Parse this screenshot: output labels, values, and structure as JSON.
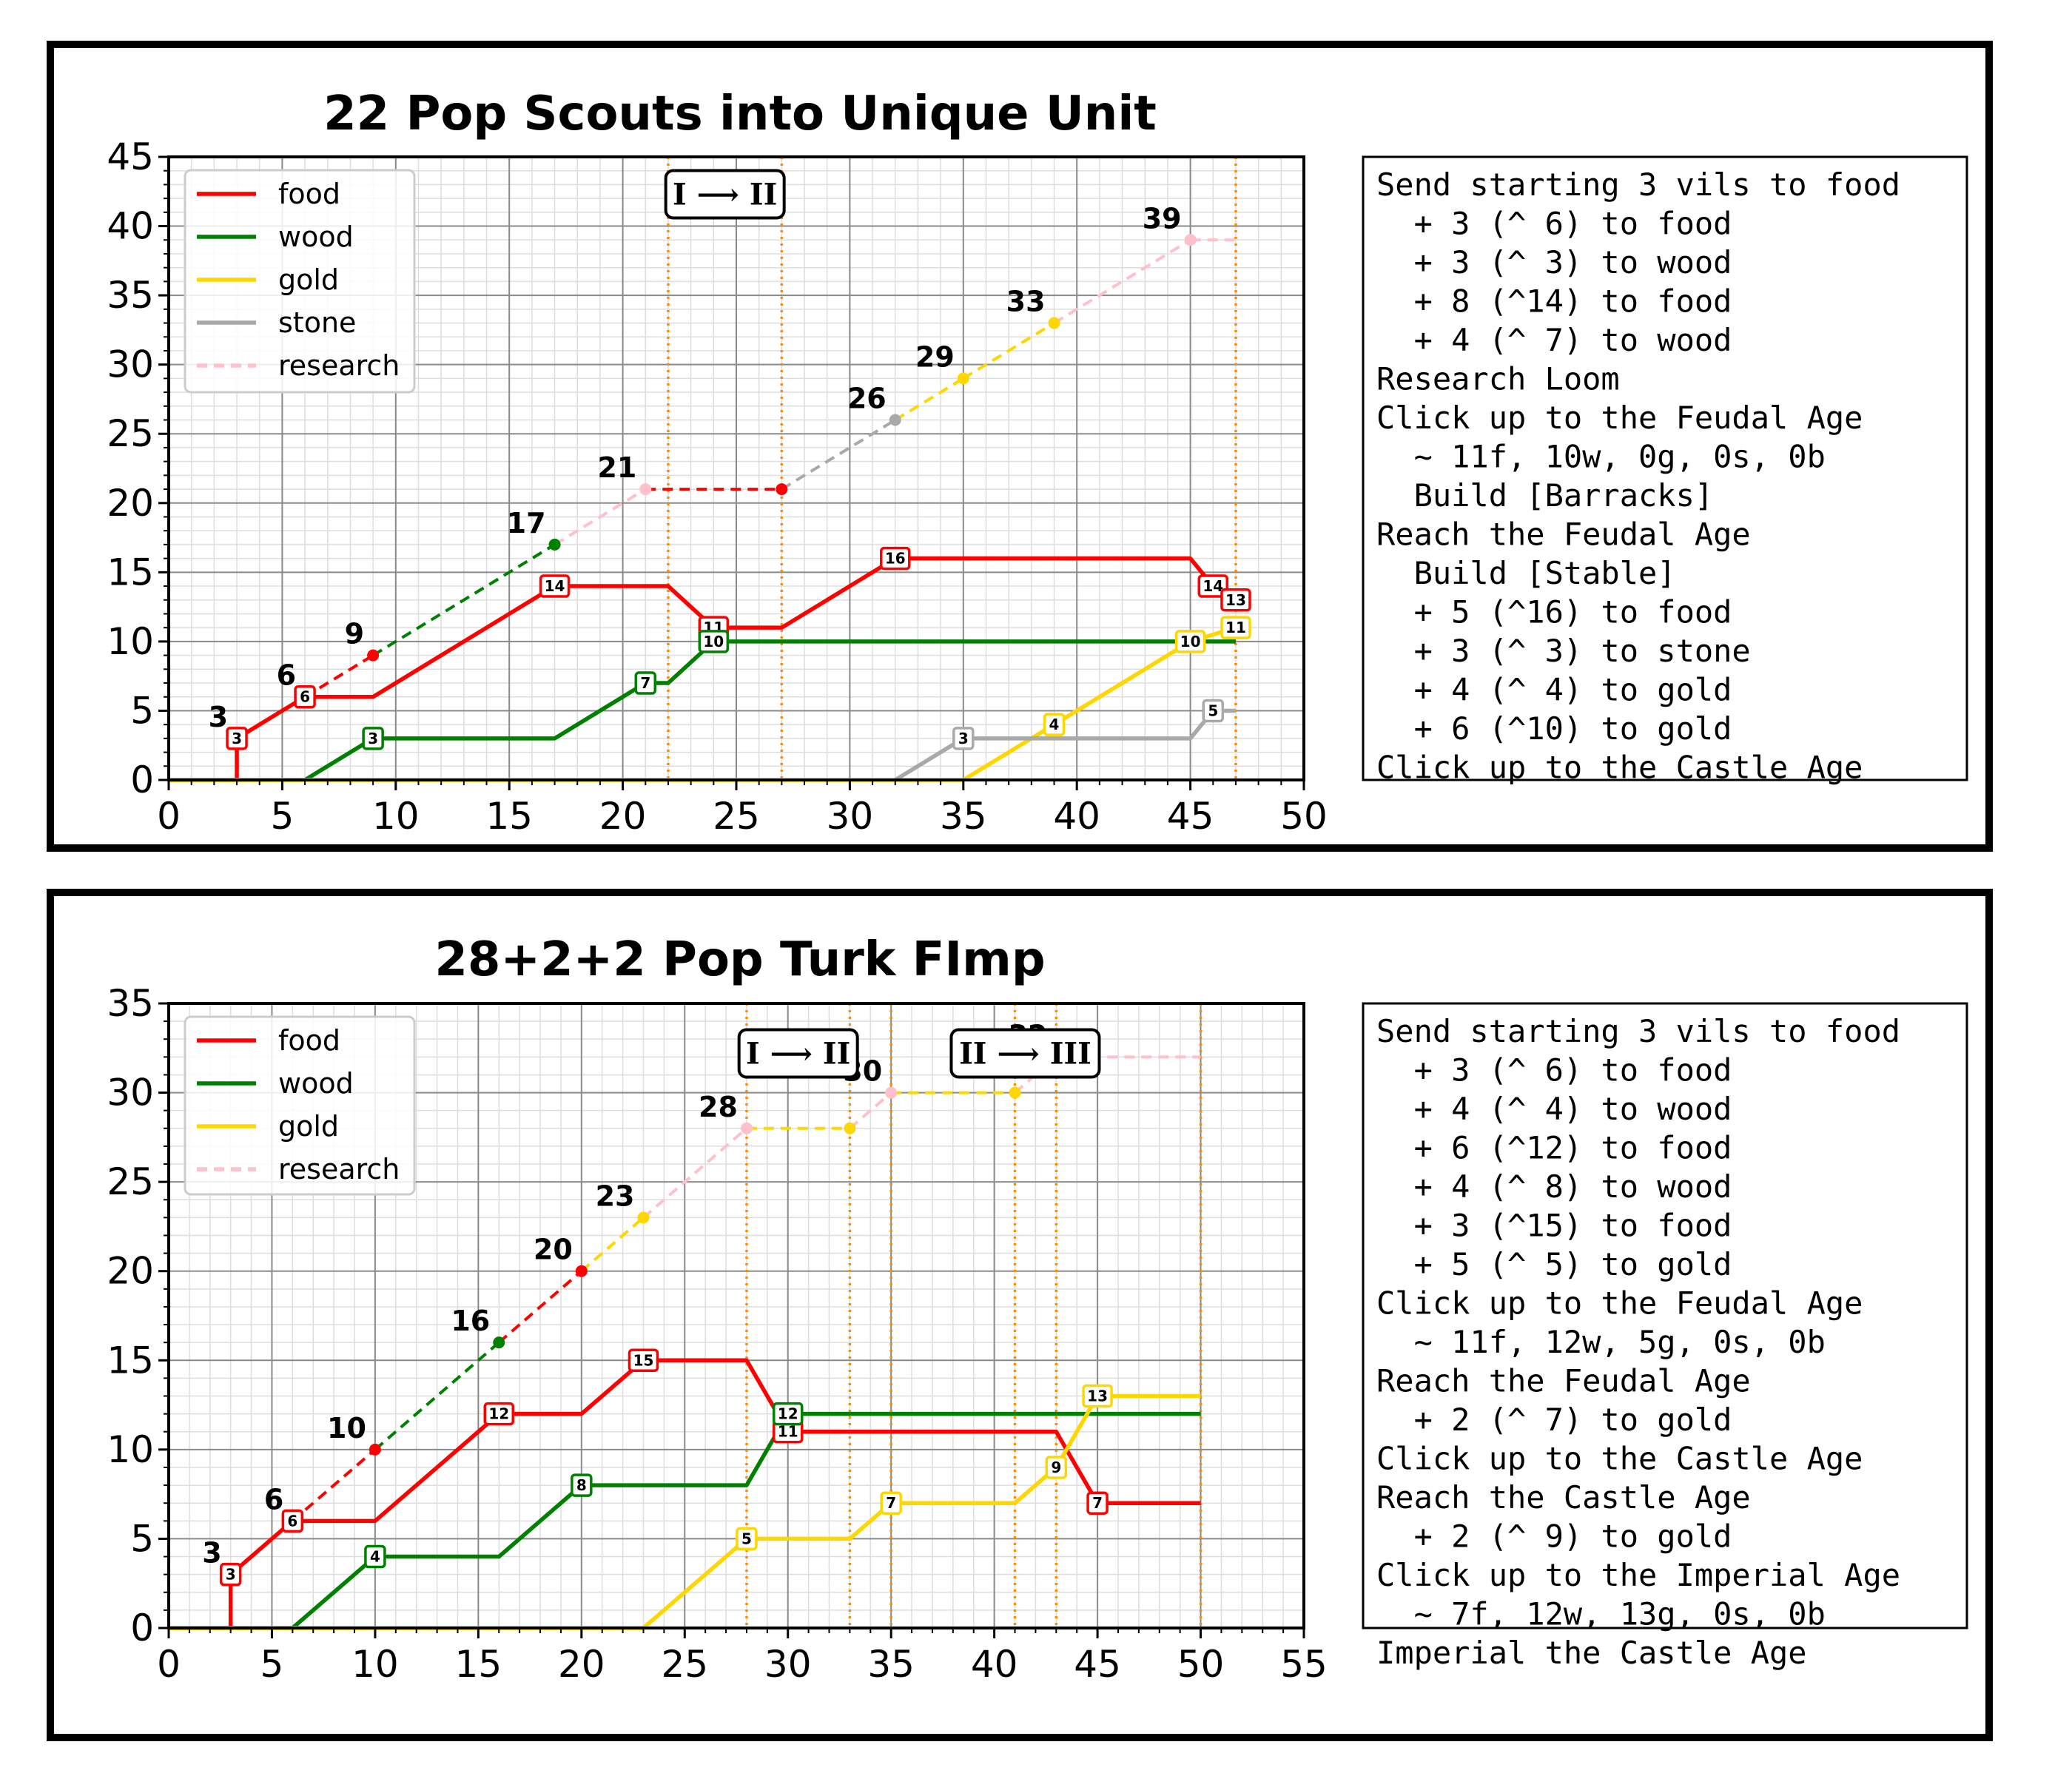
{
  "colors": {
    "food": "#ff0000",
    "wood": "#008000",
    "gold": "#ffd700",
    "stone": "#a9a9a9",
    "research": "#ffc0cb",
    "age_line": "#ff8c00"
  },
  "chart_data": [
    {
      "type": "line",
      "title": "22 Pop Scouts into Unique Unit",
      "xlim": [
        0,
        50
      ],
      "ylim": [
        0,
        45
      ],
      "xticks": [
        0,
        5,
        10,
        15,
        20,
        25,
        30,
        35,
        40,
        45,
        50
      ],
      "yticks": [
        0,
        5,
        10,
        15,
        20,
        25,
        30,
        35,
        40,
        45
      ],
      "grid": true,
      "legend_placement": "top-left",
      "legend": [
        "food",
        "wood",
        "gold",
        "stone",
        "research"
      ],
      "age_lines": [
        22,
        27,
        47
      ],
      "age_labels": [
        {
          "text": "I ⟶ II",
          "x": 24.5,
          "y": 42.3
        }
      ],
      "series": [
        {
          "name": "food",
          "color": "food",
          "x": [
            0,
            3,
            3,
            6,
            9,
            17,
            22,
            24,
            27,
            32,
            45,
            46,
            47
          ],
          "y": [
            0,
            0,
            3,
            6,
            6,
            14,
            14,
            11,
            11,
            16,
            16,
            14,
            13
          ]
        },
        {
          "name": "wood",
          "color": "wood",
          "x": [
            0,
            6,
            9,
            17,
            21,
            22,
            24,
            47
          ],
          "y": [
            0,
            0,
            3,
            3,
            7,
            7,
            10,
            10
          ]
        },
        {
          "name": "gold",
          "color": "gold",
          "x": [
            0,
            35,
            39,
            45,
            47
          ],
          "y": [
            0,
            0,
            4,
            10,
            11
          ]
        },
        {
          "name": "stone",
          "color": "stone",
          "x": [
            32,
            35,
            45,
            46,
            47
          ],
          "y": [
            0,
            3,
            3,
            5,
            5
          ]
        }
      ],
      "badges": [
        {
          "x": 3,
          "y": 3,
          "text": "3",
          "color": "food"
        },
        {
          "x": 6,
          "y": 6,
          "text": "6",
          "color": "food"
        },
        {
          "x": 17,
          "y": 14,
          "text": "14",
          "color": "food"
        },
        {
          "x": 24,
          "y": 11,
          "text": "11",
          "color": "food"
        },
        {
          "x": 32,
          "y": 16,
          "text": "16",
          "color": "food"
        },
        {
          "x": 46,
          "y": 14,
          "text": "14",
          "color": "food"
        },
        {
          "x": 47,
          "y": 13,
          "text": "13",
          "color": "food"
        },
        {
          "x": 9,
          "y": 3,
          "text": "3",
          "color": "wood"
        },
        {
          "x": 21,
          "y": 7,
          "text": "7",
          "color": "wood"
        },
        {
          "x": 24,
          "y": 10,
          "text": "10",
          "color": "wood"
        },
        {
          "x": 39,
          "y": 4,
          "text": "4",
          "color": "gold"
        },
        {
          "x": 45,
          "y": 10,
          "text": "10",
          "color": "gold"
        },
        {
          "x": 47,
          "y": 11,
          "text": "11",
          "color": "gold"
        },
        {
          "x": 35,
          "y": 3,
          "text": "3",
          "color": "stone"
        },
        {
          "x": 46,
          "y": 5,
          "text": "5",
          "color": "stone"
        }
      ],
      "population": [
        {
          "x": 3,
          "y": 3,
          "color": "food"
        },
        {
          "x": 6,
          "y": 6,
          "color": "food"
        },
        {
          "x": 9,
          "y": 9,
          "color": "food"
        },
        {
          "x": 17,
          "y": 17,
          "color": "wood"
        },
        {
          "x": 21,
          "y": 21,
          "color": "research"
        },
        {
          "x": 27,
          "y": 21,
          "color": "food"
        },
        {
          "x": 32,
          "y": 26,
          "color": "stone"
        },
        {
          "x": 35,
          "y": 29,
          "color": "gold"
        },
        {
          "x": 39,
          "y": 33,
          "color": "gold"
        },
        {
          "x": 45,
          "y": 39,
          "color": "research"
        },
        {
          "x": 47,
          "y": 39,
          "color": "research"
        }
      ],
      "pop_labels": [
        {
          "x": 3,
          "y": 3,
          "text": "3"
        },
        {
          "x": 6,
          "y": 6,
          "text": "6"
        },
        {
          "x": 9,
          "y": 9,
          "text": "9"
        },
        {
          "x": 17,
          "y": 17,
          "text": "17"
        },
        {
          "x": 21,
          "y": 21,
          "text": "21"
        },
        {
          "x": 32,
          "y": 26,
          "text": "26"
        },
        {
          "x": 35,
          "y": 29,
          "text": "29"
        },
        {
          "x": 39,
          "y": 33,
          "text": "33"
        },
        {
          "x": 45,
          "y": 39,
          "text": "39"
        }
      ],
      "notes": [
        "Send starting 3 vils to food",
        "  + 3 (^ 6) to food",
        "  + 3 (^ 3) to wood",
        "  + 8 (^14) to food",
        "  + 4 (^ 7) to wood",
        "Research Loom",
        "Click up to the Feudal Age",
        "  ~ 11f, 10w, 0g, 0s, 0b",
        "  Build [Barracks]",
        "Reach the Feudal Age",
        "  Build [Stable]",
        "  + 5 (^16) to food",
        "  + 3 (^ 3) to stone",
        "  + 4 (^ 4) to gold",
        "  + 6 (^10) to gold",
        "Click up to the Castle Age"
      ]
    },
    {
      "type": "line",
      "title": "28+2+2 Pop Turk FImp",
      "xlim": [
        0,
        55
      ],
      "ylim": [
        0,
        35
      ],
      "xticks": [
        0,
        5,
        10,
        15,
        20,
        25,
        30,
        35,
        40,
        45,
        50,
        55
      ],
      "yticks": [
        0,
        5,
        10,
        15,
        20,
        25,
        30,
        35
      ],
      "grid": true,
      "legend_placement": "top-left",
      "legend": [
        "food",
        "wood",
        "gold",
        "research"
      ],
      "age_lines": [
        28,
        33,
        35,
        41,
        43,
        50
      ],
      "age_labels": [
        {
          "text": "I ⟶ II",
          "x": 30.5,
          "y": 32.2
        },
        {
          "text": "II ⟶ III",
          "x": 41.5,
          "y": 32.2
        }
      ],
      "series": [
        {
          "name": "food",
          "color": "food",
          "x": [
            0,
            3,
            3,
            6,
            10,
            16,
            20,
            23,
            28,
            30,
            43,
            45,
            50
          ],
          "y": [
            0,
            0,
            3,
            6,
            6,
            12,
            12,
            15,
            15,
            11,
            11,
            7,
            7
          ]
        },
        {
          "name": "wood",
          "color": "wood",
          "x": [
            0,
            6,
            10,
            16,
            20,
            28,
            30,
            50
          ],
          "y": [
            0,
            0,
            4,
            4,
            8,
            8,
            12,
            12
          ]
        },
        {
          "name": "gold",
          "color": "gold",
          "x": [
            0,
            23,
            28,
            33,
            35,
            41,
            43,
            45,
            50
          ],
          "y": [
            0,
            0,
            5,
            5,
            7,
            7,
            9,
            13,
            13
          ]
        }
      ],
      "badges": [
        {
          "x": 3,
          "y": 3,
          "text": "3",
          "color": "food"
        },
        {
          "x": 6,
          "y": 6,
          "text": "6",
          "color": "food"
        },
        {
          "x": 16,
          "y": 12,
          "text": "12",
          "color": "food"
        },
        {
          "x": 23,
          "y": 15,
          "text": "15",
          "color": "food"
        },
        {
          "x": 30,
          "y": 11,
          "text": "11",
          "color": "food"
        },
        {
          "x": 45,
          "y": 7,
          "text": "7",
          "color": "food"
        },
        {
          "x": 10,
          "y": 4,
          "text": "4",
          "color": "wood"
        },
        {
          "x": 20,
          "y": 8,
          "text": "8",
          "color": "wood"
        },
        {
          "x": 30,
          "y": 12,
          "text": "12",
          "color": "wood"
        },
        {
          "x": 28,
          "y": 5,
          "text": "5",
          "color": "gold"
        },
        {
          "x": 35,
          "y": 7,
          "text": "7",
          "color": "gold"
        },
        {
          "x": 43,
          "y": 9,
          "text": "9",
          "color": "gold"
        },
        {
          "x": 45,
          "y": 13,
          "text": "13",
          "color": "gold"
        }
      ],
      "population": [
        {
          "x": 3,
          "y": 3,
          "color": "food"
        },
        {
          "x": 6,
          "y": 6,
          "color": "food"
        },
        {
          "x": 10,
          "y": 10,
          "color": "food"
        },
        {
          "x": 16,
          "y": 16,
          "color": "wood"
        },
        {
          "x": 20,
          "y": 20,
          "color": "food"
        },
        {
          "x": 23,
          "y": 23,
          "color": "gold"
        },
        {
          "x": 28,
          "y": 28,
          "color": "research"
        },
        {
          "x": 33,
          "y": 28,
          "color": "gold"
        },
        {
          "x": 35,
          "y": 30,
          "color": "research"
        },
        {
          "x": 41,
          "y": 30,
          "color": "gold"
        },
        {
          "x": 43,
          "y": 32,
          "color": "research"
        },
        {
          "x": 50,
          "y": 32,
          "color": "research"
        }
      ],
      "pop_labels": [
        {
          "x": 3,
          "y": 3,
          "text": "3"
        },
        {
          "x": 6,
          "y": 6,
          "text": "6"
        },
        {
          "x": 10,
          "y": 10,
          "text": "10"
        },
        {
          "x": 16,
          "y": 16,
          "text": "16"
        },
        {
          "x": 20,
          "y": 20,
          "text": "20"
        },
        {
          "x": 23,
          "y": 23,
          "text": "23"
        },
        {
          "x": 28,
          "y": 28,
          "text": "28"
        },
        {
          "x": 35,
          "y": 30,
          "text": "30"
        },
        {
          "x": 43,
          "y": 32,
          "text": "32"
        }
      ],
      "notes": [
        "Send starting 3 vils to food",
        "  + 3 (^ 6) to food",
        "  + 4 (^ 4) to wood",
        "  + 6 (^12) to food",
        "  + 4 (^ 8) to wood",
        "  + 3 (^15) to food",
        "  + 5 (^ 5) to gold",
        "Click up to the Feudal Age",
        "  ~ 11f, 12w, 5g, 0s, 0b",
        "Reach the Feudal Age",
        "  + 2 (^ 7) to gold",
        "Click up to the Castle Age",
        "Reach the Castle Age",
        "  + 2 (^ 9) to gold",
        "Click up to the Imperial Age",
        "  ~ 7f, 12w, 13g, 0s, 0b",
        "Imperial the Castle Age"
      ]
    }
  ]
}
